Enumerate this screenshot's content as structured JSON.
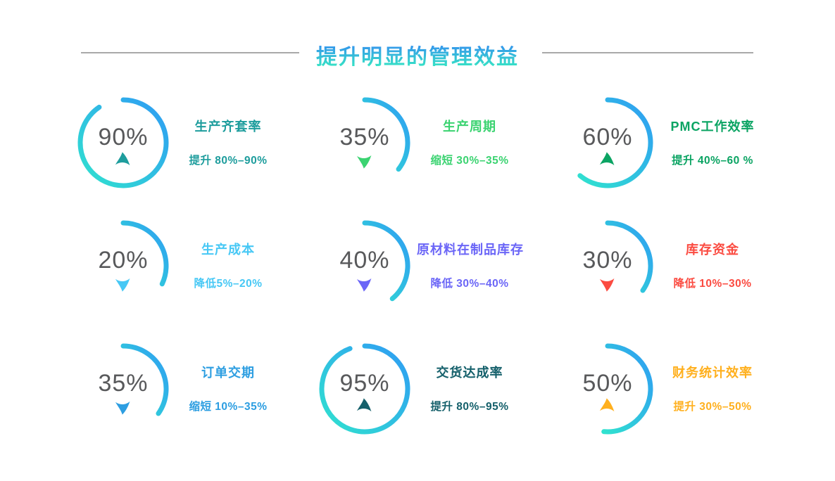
{
  "header": {
    "title": "提升明显的管理效益",
    "title_gradient": [
      "#3490EF",
      "#36E6C4"
    ],
    "line_color": "#A9A9A9"
  },
  "chart_data": {
    "type": "radial-gauge-grid",
    "layout": "3x3",
    "ring_gradient": [
      "#2F9BF4",
      "#30E2CF"
    ],
    "value_color": "#58595B",
    "items": [
      {
        "percent_label": "90%",
        "value": 90,
        "sweep_deg": 326,
        "title": "生产齐套率",
        "subtitle": "提升 80%–90%",
        "color": "#1E9D9D",
        "trend": "up"
      },
      {
        "percent_label": "35%",
        "value": 35,
        "sweep_deg": 128,
        "title": "生产周期",
        "subtitle": "缩短 30%–35%",
        "color": "#3BD371",
        "trend": "down"
      },
      {
        "percent_label": "60%",
        "value": 60,
        "sweep_deg": 220,
        "title": "PMC工作效率",
        "subtitle": "提升 40%–60 %",
        "color": "#0BA463",
        "trend": "up"
      },
      {
        "percent_label": "20%",
        "value": 20,
        "sweep_deg": 115,
        "title": "生产成本",
        "subtitle": "降低5%–20%",
        "color": "#47C8F5",
        "trend": "down"
      },
      {
        "percent_label": "40%",
        "value": 40,
        "sweep_deg": 140,
        "title": "原材料在制品库存",
        "subtitle": "降低 30%–40%",
        "color": "#6B66F7",
        "trend": "down"
      },
      {
        "percent_label": "30%",
        "value": 30,
        "sweep_deg": 125,
        "title": "库存资金",
        "subtitle": "降低 10%–30%",
        "color": "#FB4B41",
        "trend": "down"
      },
      {
        "percent_label": "35%",
        "value": 35,
        "sweep_deg": 125,
        "title": "订单交期",
        "subtitle": "缩短 10%–35%",
        "color": "#2D9EE1",
        "trend": "down"
      },
      {
        "percent_label": "95%",
        "value": 95,
        "sweep_deg": 340,
        "title": "交货达成率",
        "subtitle": "提升 80%–95%",
        "color": "#15606B",
        "trend": "up"
      },
      {
        "percent_label": "50%",
        "value": 50,
        "sweep_deg": 185,
        "title": "财务统计效率",
        "subtitle": "提升 30%–50%",
        "color": "#FFB01E",
        "trend": "up"
      }
    ]
  }
}
